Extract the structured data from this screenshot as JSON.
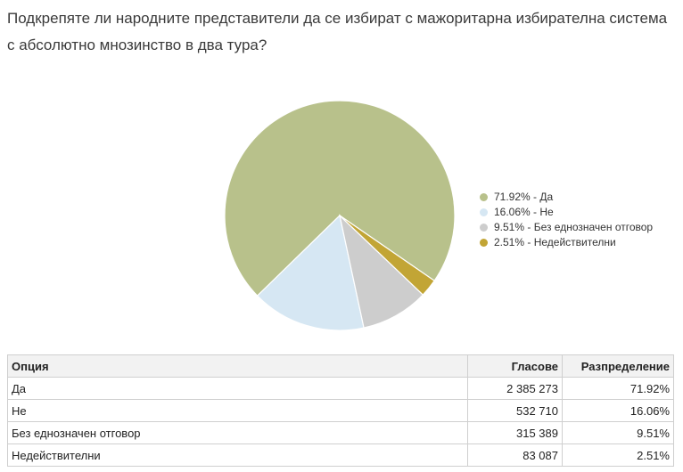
{
  "question": "Подкрепяте ли народните представители да се избират с мажоритарна избирателна система с абсолютно мнозинство в два тура?",
  "chart_data": {
    "type": "pie",
    "labels": [
      "Да",
      "Не",
      "Без еднозначен отговор",
      "Недействителни"
    ],
    "values": [
      71.92,
      16.06,
      9.51,
      2.51
    ],
    "colors": [
      "#b8c18b",
      "#d6e7f3",
      "#cdcdcd",
      "#c2a535"
    ],
    "legend_placement": "right",
    "legend_entries": [
      "71.92% - Да",
      "16.06% - Не",
      "9.51% - Без еднозначен отговор",
      "2.51% - Недействителни"
    ]
  },
  "table": {
    "headers": [
      "Опция",
      "Гласове",
      "Разпределение"
    ],
    "rows": [
      [
        "Да",
        "2 385 273",
        "71.92%"
      ],
      [
        "Не",
        "532 710",
        "16.06%"
      ],
      [
        "Без еднозначен отговор",
        "315 389",
        "9.51%"
      ],
      [
        "Недействителни",
        "83 087",
        "2.51%"
      ]
    ]
  }
}
